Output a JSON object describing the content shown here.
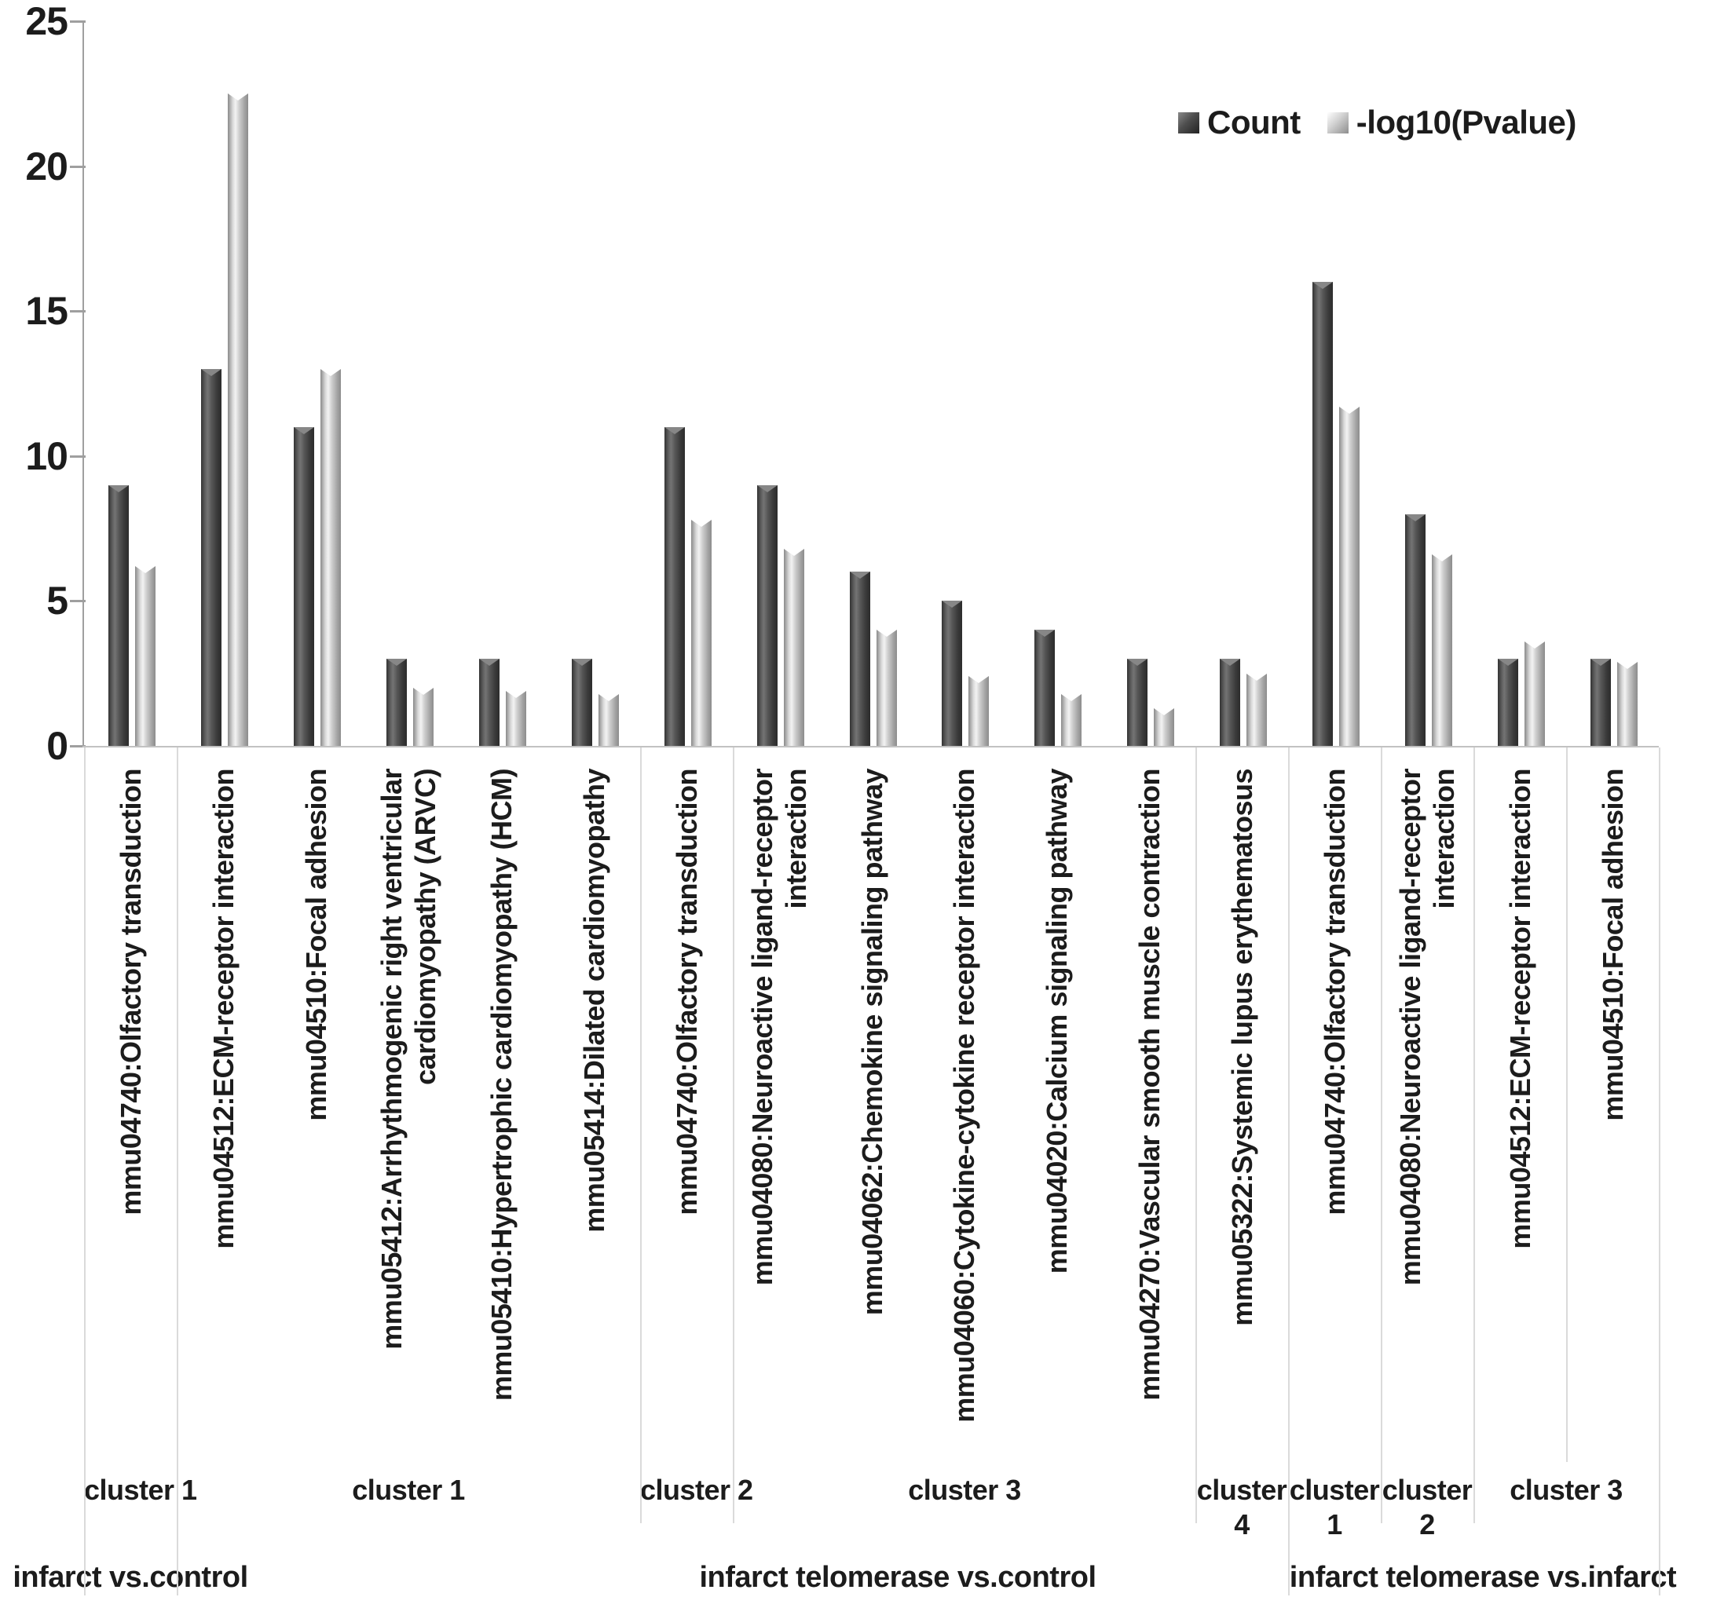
{
  "legend": {
    "count_label": "Count",
    "pvalue_label": "-log10(Pvalue)"
  },
  "y_axis": {
    "ticks": [
      0,
      5,
      10,
      15,
      20,
      25
    ],
    "min": 0,
    "max": 25
  },
  "chart_data": {
    "type": "bar",
    "title": "",
    "xlabel": "",
    "ylabel": "",
    "ylim": [
      0,
      25
    ],
    "grid": false,
    "legend_position": "top-right",
    "colors": {
      "count": "#4a4a4a",
      "pvalue": "#d6d6d6"
    },
    "categories": [
      "mmu04740:Olfactory transduction",
      "mmu04512:ECM-receptor interaction",
      "mmu04510:Focal adhesion",
      "mmu05412:Arrhythmogenic right ventricular cardiomyopathy (ARVC)",
      "mmu05410:Hypertrophic cardiomyopathy (HCM)",
      "mmu05414:Dilated cardiomyopathy",
      "mmu04740:Olfactory transduction",
      "mmu04080:Neuroactive ligand-receptor interaction",
      "mmu04062:Chemokine signaling pathway",
      "mmu04060:Cytokine-cytokine receptor interaction",
      "mmu04020:Calcium signaling pathway",
      "mmu04270:Vascular smooth muscle contraction",
      "mmu05322:Systemic lupus erythematosus",
      "mmu04740:Olfactory transduction",
      "mmu04080:Neuroactive ligand-receptor interaction",
      "mmu04512:ECM-receptor interaction",
      "mmu04510:Focal adhesion"
    ],
    "series": [
      {
        "name": "Count",
        "values": [
          9,
          13,
          11,
          3,
          3,
          3,
          11,
          9,
          6,
          5,
          4,
          3,
          3,
          16,
          8,
          3,
          3
        ]
      },
      {
        "name": "-log10(Pvalue)",
        "values": [
          6.2,
          22.5,
          13.0,
          2.0,
          1.9,
          1.8,
          7.8,
          6.8,
          4.0,
          2.4,
          1.8,
          1.3,
          2.5,
          11.7,
          6.6,
          3.6,
          2.9
        ]
      }
    ],
    "groups": [
      {
        "comparison": "infarct vs.control",
        "clusters": [
          {
            "label": "cluster 1",
            "start": 0,
            "count": 1,
            "wrap": false
          }
        ]
      },
      {
        "comparison": "infarct telomerase vs.control",
        "clusters": [
          {
            "label": "cluster 1",
            "start": 1,
            "count": 5,
            "wrap": false
          },
          {
            "label": "cluster 2",
            "start": 6,
            "count": 1,
            "wrap": false
          },
          {
            "label": "cluster 3",
            "start": 7,
            "count": 5,
            "wrap": false
          },
          {
            "label": "cluster 4",
            "start": 12,
            "count": 1,
            "wrap": true
          }
        ]
      },
      {
        "comparison": "infarct telomerase vs.infarct",
        "clusters": [
          {
            "label": "cluster 1",
            "start": 13,
            "count": 1,
            "wrap": true
          },
          {
            "label": "cluster 2",
            "start": 14,
            "count": 1,
            "wrap": true
          },
          {
            "label": "cluster 3",
            "start": 15,
            "count": 2,
            "wrap": false
          }
        ]
      }
    ]
  }
}
